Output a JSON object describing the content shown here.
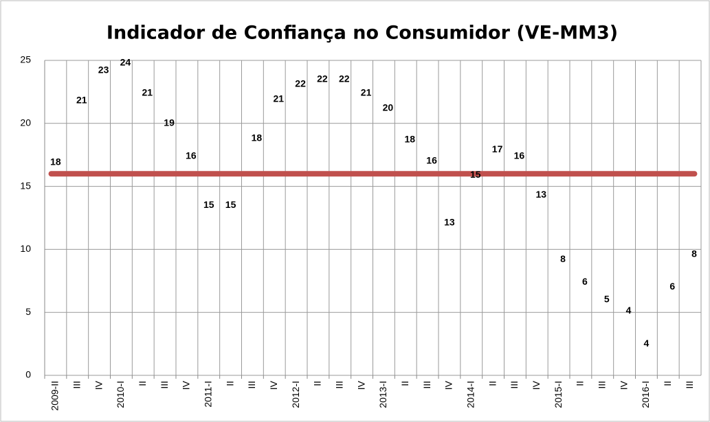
{
  "chart_data": {
    "type": "line",
    "title": "Indicador de Confiança no Consumidor (VE-MM3)",
    "categories": [
      "2009-II",
      "III",
      "IV",
      "2010-I",
      "II",
      "III",
      "IV",
      "2011-I",
      "II",
      "III",
      "IV",
      "2012-I",
      "II",
      "III",
      "IV",
      "2013-I",
      "II",
      "III",
      "IV",
      "2014-I",
      "II",
      "III",
      "IV",
      "2015-I",
      "II",
      "III",
      "IV",
      "2016-I",
      "II",
      "III"
    ],
    "series": [
      {
        "color": "#4f81bd",
        "values": [
          18.2,
          20.6,
          23.0,
          23.6,
          21.2,
          18.8,
          16.2,
          14.8,
          14.8,
          17.6,
          20.7,
          21.9,
          22.3,
          22.3,
          21.2,
          20.0,
          17.5,
          15.8,
          13.4,
          14.7,
          16.7,
          16.2,
          13.1,
          8.0,
          6.2,
          4.8,
          3.9,
          3.8,
          5.8,
          8.4
        ],
        "value_labels": [
          "18",
          "21",
          "23",
          "24",
          "21",
          "19",
          "16",
          "15",
          "15",
          "18",
          "21",
          "22",
          "22",
          "22",
          "21",
          "20",
          "18",
          "16",
          "13",
          "15",
          "17",
          "16",
          "13",
          "8",
          "6",
          "5",
          "4",
          "4",
          "6",
          "8"
        ]
      }
    ],
    "reference_line": {
      "value": 16,
      "color": "#c0504d"
    },
    "ylim": [
      0,
      25
    ],
    "yticks": [
      0,
      5,
      10,
      15,
      20,
      25
    ],
    "grid": true
  }
}
